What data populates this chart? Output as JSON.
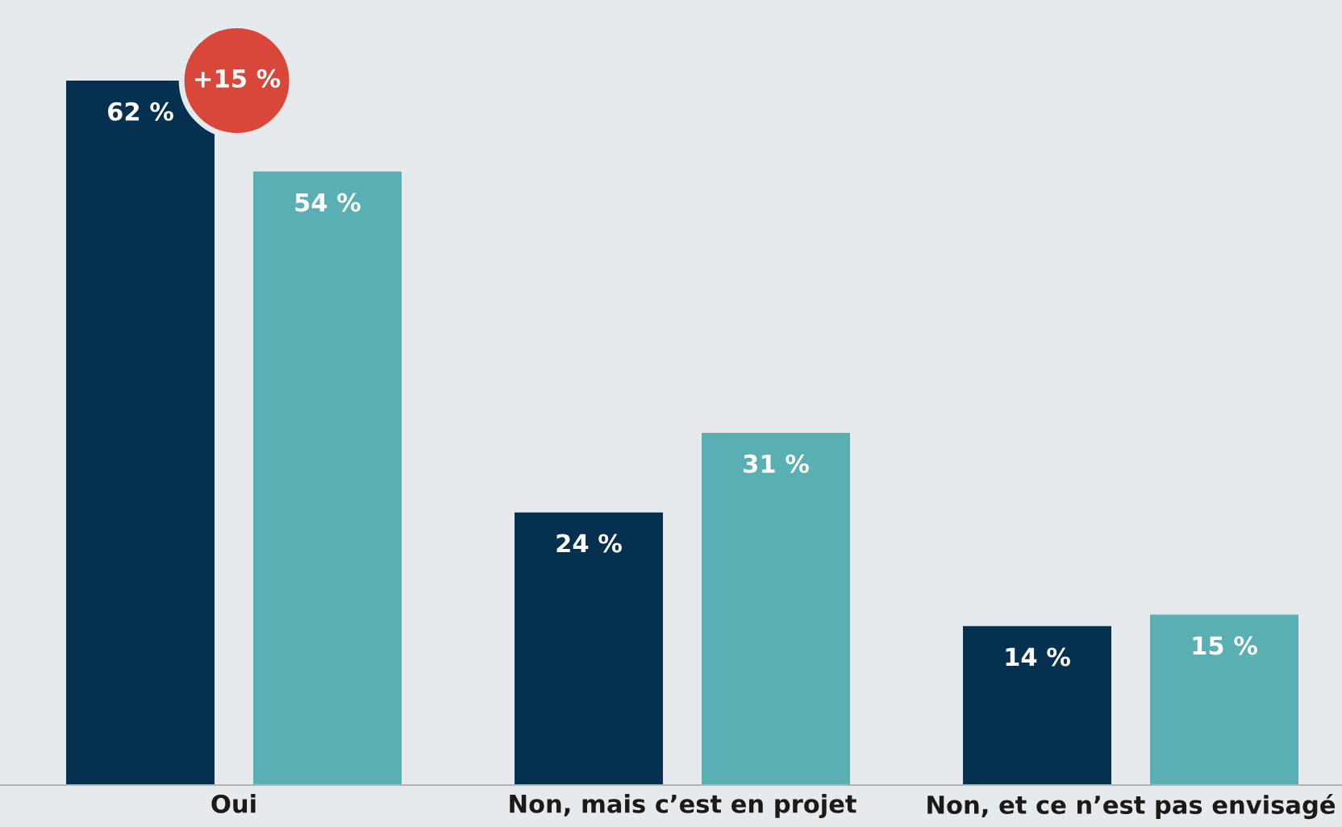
{
  "chart_data": {
    "type": "bar",
    "categories": [
      "Oui",
      "Non, mais c’est en projet",
      "Non, et ce n’est pas envisagé"
    ],
    "series": [
      {
        "color": "#06304f",
        "values": [
          62,
          24,
          14
        ],
        "value_labels": [
          "62 %",
          "24 %",
          "14 %"
        ]
      },
      {
        "color": "#5aafb3",
        "values": [
          54,
          31,
          15
        ],
        "value_labels": [
          "54 %",
          "31 %",
          "15 %"
        ]
      }
    ],
    "annotations": [
      "+15 %"
    ],
    "grid": false,
    "legend": false
  }
}
